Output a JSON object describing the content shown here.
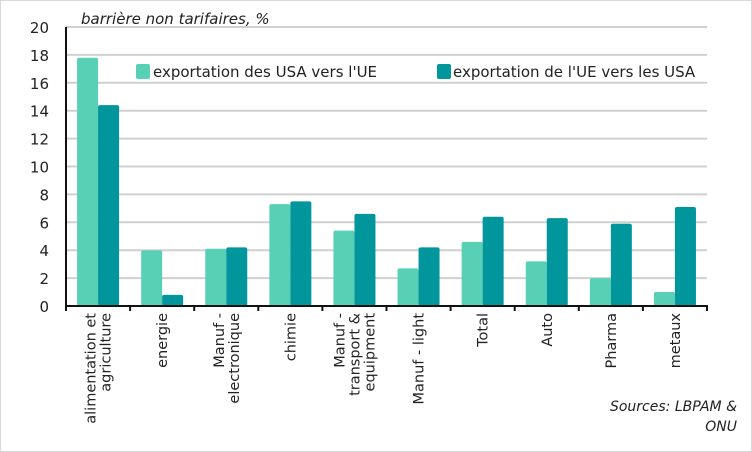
{
  "chart_data": {
    "type": "bar",
    "title": "barrière non tarifaires, %",
    "xlabel": "",
    "ylabel": "",
    "ylim": [
      0,
      20
    ],
    "yticks": [
      0,
      2,
      4,
      6,
      8,
      10,
      12,
      14,
      16,
      18,
      20
    ],
    "grid": true,
    "legend_position": "top-right",
    "categories": [
      [
        "alimentation et",
        "agriculture"
      ],
      [
        "energie"
      ],
      [
        "Manuf -",
        "electronique"
      ],
      [
        "chimie"
      ],
      [
        "Manuf -",
        "transport &",
        "equipment"
      ],
      [
        "Manuf - light"
      ],
      [
        "Total"
      ],
      [
        "Auto"
      ],
      [
        "Pharma"
      ],
      [
        "metaux"
      ]
    ],
    "series": [
      {
        "name": "exportation des USA vers l'UE",
        "color": "#58d0b6",
        "values": [
          17.8,
          4.0,
          4.1,
          7.3,
          5.4,
          2.7,
          4.6,
          3.2,
          2.0,
          1.0
        ]
      },
      {
        "name": "exportation de l'UE vers les USA",
        "color": "#00969c",
        "values": [
          14.4,
          0.8,
          4.2,
          7.5,
          6.6,
          4.2,
          6.4,
          6.3,
          5.9,
          7.1
        ]
      }
    ],
    "source": [
      "Sources: LBPAM &",
      "ONU"
    ]
  }
}
